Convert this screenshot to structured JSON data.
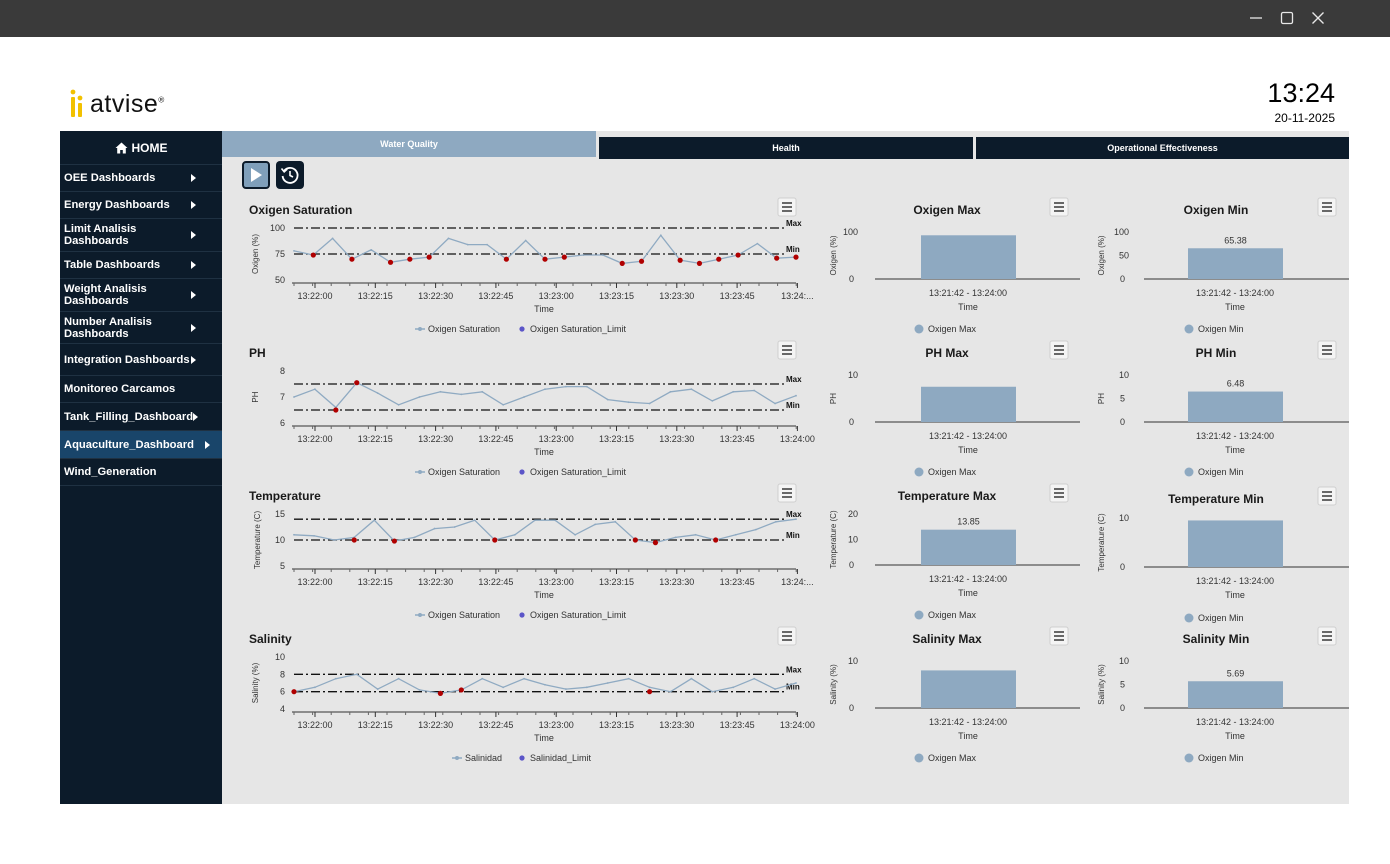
{
  "window": {
    "minimize_icon": "minimize-icon",
    "maximize_icon": "maximize-icon",
    "close_icon": "close-icon"
  },
  "brand": {
    "name": "atvise",
    "reg": "®"
  },
  "clock": {
    "time": "13:24",
    "date": "20-11-2025"
  },
  "sidebar": {
    "home": "HOME",
    "items": [
      {
        "label": "OEE Dashboards",
        "arrow": true
      },
      {
        "label": "Energy Dashboards",
        "arrow": true
      },
      {
        "label": "Limit Analisis Dashboards",
        "arrow": true
      },
      {
        "label": "Table Dashboards",
        "arrow": true
      },
      {
        "label": "Weight Analisis Dashboards",
        "arrow": true
      },
      {
        "label": "Number Analisis Dashboards",
        "arrow": true
      },
      {
        "label": "Integration Dashboards",
        "arrow": true
      },
      {
        "label": "Monitoreo Carcamos",
        "arrow": false
      },
      {
        "label": "Tank_Filling_Dashboard",
        "arrow": true
      },
      {
        "label": "Aquaculture_Dashboard",
        "arrow": true,
        "active": true
      },
      {
        "label": "Wind_Generation",
        "arrow": false
      }
    ]
  },
  "tabs": [
    {
      "label": "Water Quality",
      "active": true
    },
    {
      "label": "Health"
    },
    {
      "label": "Operational Effectiveness"
    }
  ],
  "controls": {
    "play_icon": "play-icon",
    "history_icon": "history-icon"
  },
  "colors": {
    "line": "#8faac2",
    "limit_dot": "#b00000",
    "bar": "#8ea9c1",
    "dark": "#0c1b2a",
    "legend_limit": "#5b55c8"
  },
  "chart_data": [
    {
      "type": "line",
      "title": "Oxigen Saturation",
      "ylabel": "Oxigen (%)",
      "xlabel": "Time",
      "ylim": [
        50,
        100
      ],
      "yticks": [
        50,
        75,
        100
      ],
      "xticks": [
        "13:22:00",
        "13:22:15",
        "13:22:30",
        "13:22:45",
        "13:23:00",
        "13:23:15",
        "13:23:30",
        "13:23:45",
        "13:24:..."
      ],
      "series": [
        {
          "name": "Oxigen Saturation",
          "values": [
            78,
            74,
            90,
            70,
            79,
            67,
            70,
            72,
            90,
            84,
            84,
            70,
            88,
            70,
            72,
            74,
            74,
            66,
            68,
            93,
            69,
            66,
            70,
            74,
            85,
            71,
            72
          ]
        },
        {
          "name": "Oxigen Saturation_Limit",
          "points": [
            [
              1,
              74
            ],
            [
              3,
              70
            ],
            [
              5,
              67
            ],
            [
              6,
              70
            ],
            [
              7,
              72
            ],
            [
              11,
              70
            ],
            [
              13,
              70
            ],
            [
              14,
              72
            ],
            [
              17,
              66
            ],
            [
              18,
              68
            ],
            [
              20,
              69
            ],
            [
              21,
              66
            ],
            [
              22,
              70
            ],
            [
              23,
              74
            ],
            [
              25,
              71
            ],
            [
              26,
              72
            ]
          ]
        }
      ],
      "max_line": 100,
      "min_line": 75,
      "max_label": "Max",
      "min_label": "Min"
    },
    {
      "type": "bar",
      "title": "Oxigen Max",
      "ylabel": "Oxigen (%)",
      "xlabel": "Time",
      "ylim": [
        0,
        100
      ],
      "yticks": [
        0,
        100
      ],
      "categories": [
        "13:21:42 - 13:24:00"
      ],
      "values": [
        93
      ],
      "data_label": "",
      "legend": "Oxigen Max"
    },
    {
      "type": "bar",
      "title": "Oxigen Min",
      "ylabel": "Oxigen (%)",
      "xlabel": "Time",
      "ylim": [
        0,
        100
      ],
      "yticks": [
        0,
        50,
        100
      ],
      "categories": [
        "13:21:42 - 13:24:00"
      ],
      "values": [
        65.38
      ],
      "data_label": "65.38",
      "legend": "Oxigen Min"
    },
    {
      "type": "line",
      "title": "PH",
      "ylabel": "PH",
      "xlabel": "Time",
      "ylim": [
        6,
        8
      ],
      "yticks": [
        6,
        7,
        8
      ],
      "xticks": [
        "13:22:00",
        "13:22:15",
        "13:22:30",
        "13:22:45",
        "13:23:00",
        "13:23:15",
        "13:23:30",
        "13:23:45",
        "13:24:00"
      ],
      "series": [
        {
          "name": "Oxigen Saturation",
          "values": [
            7.0,
            7.3,
            6.6,
            7.55,
            7.15,
            6.7,
            7.0,
            7.2,
            7.1,
            7.2,
            6.7,
            7.0,
            7.3,
            7.4,
            7.4,
            6.9,
            6.8,
            6.75,
            7.2,
            7.3,
            6.85,
            7.2,
            7.25,
            6.75,
            7.05
          ]
        },
        {
          "name": "Oxigen Saturation_Limit",
          "points": [
            [
              2,
              6.5
            ],
            [
              3,
              7.55
            ]
          ]
        }
      ],
      "max_line": 7.5,
      "min_line": 6.5,
      "max_label": "Max",
      "min_label": "Min"
    },
    {
      "type": "bar",
      "title": "PH Max",
      "ylabel": "PH",
      "xlabel": "Time",
      "ylim": [
        0,
        10
      ],
      "yticks": [
        0,
        10
      ],
      "categories": [
        "13:21:42 - 13:24:00"
      ],
      "values": [
        7.5
      ],
      "data_label": "",
      "legend": "Oxigen Max"
    },
    {
      "type": "bar",
      "title": "PH Min",
      "ylabel": "PH",
      "xlabel": "Time",
      "ylim": [
        0,
        10
      ],
      "yticks": [
        0,
        5,
        10
      ],
      "categories": [
        "13:21:42 - 13:24:00"
      ],
      "values": [
        6.48
      ],
      "data_label": "6.48",
      "legend": "Oxigen Min"
    },
    {
      "type": "line",
      "title": "Temperature",
      "ylabel": "Temperature (C)",
      "xlabel": "Time",
      "ylim": [
        5,
        15
      ],
      "yticks": [
        5,
        10,
        15
      ],
      "xticks": [
        "13:22:00",
        "13:22:15",
        "13:22:30",
        "13:22:45",
        "13:23:00",
        "13:23:15",
        "13:23:30",
        "13:23:45",
        "13:24:..."
      ],
      "series": [
        {
          "name": "Oxigen Saturation",
          "values": [
            11,
            10.8,
            10,
            10.5,
            13.8,
            9.8,
            10.5,
            12.2,
            12.5,
            13.8,
            10,
            11,
            13.8,
            13.8,
            11,
            13,
            13.5,
            10,
            9.5,
            10.5,
            11,
            10,
            11,
            12,
            13.5,
            14
          ]
        },
        {
          "name": "Oxigen Saturation_Limit",
          "points": [
            [
              3,
              10
            ],
            [
              5,
              9.8
            ],
            [
              10,
              10
            ],
            [
              17,
              10
            ],
            [
              18,
              9.5
            ],
            [
              21,
              10
            ]
          ]
        }
      ],
      "max_line": 14,
      "min_line": 10,
      "max_label": "Max",
      "min_label": "Min"
    },
    {
      "type": "bar",
      "title": "Temperature Max",
      "ylabel": "Temperature (C)",
      "xlabel": "Time",
      "ylim": [
        0,
        20
      ],
      "yticks": [
        0,
        10,
        20
      ],
      "categories": [
        "13:21:42 - 13:24:00"
      ],
      "values": [
        13.85
      ],
      "data_label": "13.85",
      "legend": "Oxigen Max"
    },
    {
      "type": "bar",
      "title": "Temperature Min",
      "ylabel": "Temperature (C)",
      "xlabel": "Time",
      "ylim": [
        0,
        10
      ],
      "yticks": [
        0,
        10
      ],
      "categories": [
        "13:21:42 - 13:24:00"
      ],
      "values": [
        9.5
      ],
      "data_label": "",
      "legend": "Oxigen Min"
    },
    {
      "type": "line",
      "title": "Salinity",
      "ylabel": "Salinity (%)",
      "xlabel": "Time",
      "ylim": [
        4,
        10
      ],
      "yticks": [
        4,
        6,
        8,
        10
      ],
      "xticks": [
        "13:22:00",
        "13:22:15",
        "13:22:30",
        "13:22:45",
        "13:23:00",
        "13:23:15",
        "13:23:30",
        "13:23:45",
        "13:24:00"
      ],
      "series": [
        {
          "name": "Salinidad",
          "values": [
            6,
            6.5,
            7.5,
            8,
            6.3,
            7.5,
            6.2,
            5.8,
            6.2,
            7.5,
            6.5,
            7.5,
            6.8,
            6.3,
            6.5,
            7,
            7.5,
            6.5,
            6,
            7.5,
            6,
            6.5,
            7.5,
            6.3,
            7
          ]
        },
        {
          "name": "Salinidad_Limit",
          "points": [
            [
              0,
              6
            ],
            [
              7,
              5.8
            ],
            [
              8,
              6.2
            ],
            [
              17,
              6
            ]
          ]
        }
      ],
      "max_line": 8,
      "min_line": 6,
      "max_label": "Max",
      "min_label": "Min"
    },
    {
      "type": "bar",
      "title": "Salinity Max",
      "ylabel": "Salinity (%)",
      "xlabel": "Time",
      "ylim": [
        0,
        10
      ],
      "yticks": [
        0,
        10
      ],
      "categories": [
        "13:21:42 - 13:24:00"
      ],
      "values": [
        8
      ],
      "data_label": "",
      "legend": "Oxigen Max"
    },
    {
      "type": "bar",
      "title": "Salinity Min",
      "ylabel": "Salinity (%)",
      "xlabel": "Time",
      "ylim": [
        0,
        10
      ],
      "yticks": [
        0,
        5,
        10
      ],
      "categories": [
        "13:21:42 - 13:24:00"
      ],
      "values": [
        5.69
      ],
      "data_label": "5.69",
      "legend": "Oxigen Min"
    }
  ]
}
